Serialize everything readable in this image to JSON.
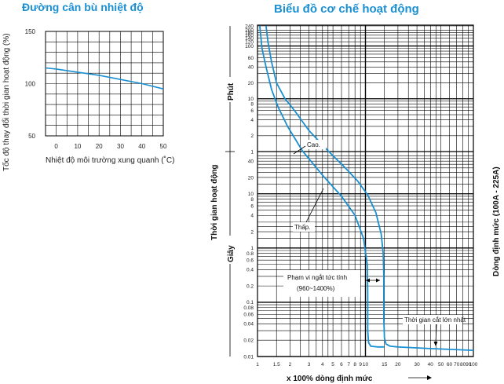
{
  "chart_data": [
    {
      "type": "line",
      "title": "Đường cân bù nhiệt độ",
      "xlabel": "Nhiệt độ môi trường xung quanh (˚C)",
      "ylabel": "Tốc độ thay đổi thời gian hoạt động (%)",
      "xlim": [
        -5,
        50
      ],
      "ylim": [
        50,
        150
      ],
      "x_ticks": [
        "0",
        "10",
        "20",
        "30",
        "40",
        "50"
      ],
      "y_ticks": [
        "50",
        "100",
        "150"
      ],
      "grid": true,
      "series": [
        {
          "x": [
            -5,
            0,
            10,
            20,
            30,
            40,
            50
          ],
          "values": [
            115,
            114,
            111,
            108,
            104,
            100,
            95
          ]
        }
      ],
      "colors": {
        "line": "#1a8fd1",
        "grid": "#000000"
      }
    },
    {
      "type": "line",
      "title": "Biểu đồ cơ chế hoạt động",
      "xlabel": "x 100% dòng định mức",
      "ylabel": "Thời gian hoạt động",
      "right_label": "Dòng định mức (100A - 225A)",
      "unit_labels": {
        "upper": "Phút",
        "lower": "Giây"
      },
      "x_scale": "log",
      "y_scale": "log",
      "xlim": [
        1,
        100
      ],
      "x_ticks": [
        "1",
        "1.5",
        "2",
        "3",
        "4",
        "5",
        "6",
        "7",
        "8",
        "9",
        "10",
        "15",
        "20",
        "30",
        "40",
        "50",
        "60",
        "70",
        "80",
        "90",
        "100"
      ],
      "y_ticks_minutes": [
        "240",
        "200",
        "180",
        "160",
        "140",
        "120",
        "100",
        "60",
        "40",
        "20",
        "10",
        "8",
        "6",
        "4",
        "2",
        "1"
      ],
      "y_ticks_seconds": [
        "40",
        "20",
        "10",
        "8",
        "6",
        "4",
        "2",
        "1",
        "0.8",
        "0.6",
        "0.4",
        "0.2",
        "0.1",
        "0.08",
        "0.06",
        "0.04",
        "0.02",
        "0.01"
      ],
      "grid": true,
      "series": [
        {
          "name": "Cao.",
          "x": [
            1.2,
            1.25,
            1.35,
            1.5,
            1.8,
            2.2,
            3,
            4.5,
            6.5,
            8.5,
            10.5,
            12.5,
            14,
            14.6,
            14.8,
            14.8,
            15,
            15.5,
            17,
            20,
            40,
            100
          ],
          "values_s": [
            14400,
            7200,
            3000,
            1200,
            600,
            360,
            150,
            62,
            30,
            17,
            9.5,
            4.5,
            1.8,
            0.8,
            0.3,
            0.05,
            0.022,
            0.017,
            0.0155,
            0.015,
            0.014,
            0.013
          ]
        },
        {
          "name": "Thấp.",
          "x": [
            1.05,
            1.1,
            1.2,
            1.35,
            1.55,
            1.9,
            2.6,
            4,
            6,
            8,
            9.6,
            10.4,
            10.5,
            10.5,
            10.7,
            11.2,
            13,
            15
          ],
          "values_s": [
            14400,
            5400,
            2400,
            900,
            420,
            180,
            62,
            22,
            9,
            4,
            1.5,
            0.5,
            0.15,
            0.03,
            0.018,
            0.0155,
            0.015,
            0.015
          ]
        }
      ],
      "annotations": {
        "instant_trip_range": "Phạm vi ngắt tức tính",
        "instant_trip_range_values": "(960~1400%)",
        "max_break_time": "Thời gian cắt lớn nhất"
      },
      "colors": {
        "curves": "#1a8fd1",
        "grid": "#000000"
      }
    }
  ]
}
